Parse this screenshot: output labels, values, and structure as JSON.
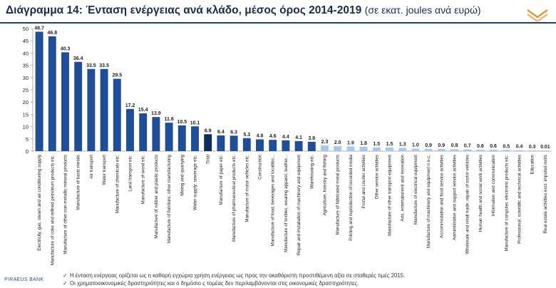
{
  "title": {
    "main": "Διάγραμμα 14: Ένταση ενέργειας ανά κλάδο, μέσος όρος 2014-2019",
    "sub": "(σε εκατ. joules ανά ευρώ)"
  },
  "footnotes": [
    "Η ένταση ενέργειας ορίζεται ως η καθαρή εγχώρια χρήση ενέργειας ως προς την ακαθάριστη προστιθέμενη αξία σε σταθερές τιμές 2015.",
    "Οι χρηματοοικονομικές δραστηριότητες και ο δημόσιο ς τομέας δεν περιλαμβάνονται στις οικονομικές δραστηριότητες."
  ],
  "footnote_bullet": "✓",
  "brand": "PIRAEUS BANK",
  "colors": {
    "bar": "#1f4e96",
    "bar_light": "#a9c7ea",
    "bar_total": "#0f2b57",
    "title": "#1c2a4a",
    "rule": "#1c3f75",
    "accent": "#e8901e"
  },
  "chart_data": {
    "type": "bar",
    "ylim": [
      0,
      50
    ],
    "yticks": [
      0,
      5,
      10,
      15,
      20,
      25,
      30,
      35,
      40,
      45,
      50
    ],
    "grid": false,
    "categories": [
      "Electricity, gas, steam and air conditioning supply",
      "Manufacture of coke and refined petroleum products etc.",
      "Manufacture of other non-metallic mineral products",
      "Manufacture of basic metals",
      "Air transport",
      "Water transport",
      "Manufacture of chemicals etc.",
      "Land transport etc.",
      "Manufacture of wood etc.",
      "Manufacture of rubber and plastic products",
      "Manufacture of furniture; other manufacturing",
      "Mining and quarrying",
      "Water supply; sewerage etc.",
      "Total",
      "Manufacture of paper etc.",
      "Manufacture of pharmaceutical products etc.",
      "Manufacture of motor vehicles etc.",
      "Construction",
      "Manufacture of food, beverages and tocabbo...",
      "Manufacture of textiles, wearing apparel, leather...",
      "Repair and installation of machinery and equipment",
      "Warehousing etc.",
      "Agriculture, forestry and fishing",
      "Manufacture of fabricated metal products",
      "Printing and reproduction of recorded media",
      "Postal and courier activities",
      "Other service activities",
      "Manufacture of other transport equipment",
      "Arts, entertainment and recreation",
      "Manufacture of electrical equipment",
      "Manufacture of machinery and equipment n.e.c.",
      "Accommodation and food service activities",
      "Administrative and support service activities",
      "Wholesale and retail trade; repair of motor vehicles",
      "Human health and social work activities",
      "Information and communication",
      "Manufacture of computer, electronic products etc.",
      "Professional, scientific and technical activities",
      "Education",
      "Real estate activities excl. imputed rents"
    ],
    "values": [
      48.7,
      46.8,
      40.3,
      36.4,
      33.5,
      33.5,
      29.5,
      17.2,
      15.4,
      13.9,
      11.6,
      10.5,
      10.1,
      6.9,
      6.4,
      6.3,
      5.3,
      4.8,
      4.6,
      4.4,
      4.1,
      3.8,
      2.3,
      2.0,
      1.9,
      1.8,
      1.5,
      1.5,
      1.3,
      1.0,
      0.9,
      0.9,
      0.8,
      0.7,
      0.6,
      0.6,
      0.5,
      0.4,
      0.3,
      0.01
    ],
    "labels": [
      "48.7",
      "46.8",
      "40.3",
      "36.4",
      "33.5",
      "33.5",
      "29.5",
      "17.2",
      "15.4",
      "13.9",
      "11.6",
      "10.5",
      "10.1",
      "6.9",
      "6.4",
      "6.3",
      "5.3",
      "4.8",
      "4.6",
      "4.4",
      "4.1",
      "3.8",
      "2.3",
      "2.0",
      "1.9",
      "1.8",
      "1.5",
      "1.5",
      "1.3",
      "1.0",
      "0.9",
      "0.9",
      "0.8",
      "0.7",
      "0.6",
      "0.6",
      "0.5",
      "0.4",
      "0.3",
      "0.01"
    ],
    "highlight_category": "Total",
    "light_bars_from": 22
  }
}
